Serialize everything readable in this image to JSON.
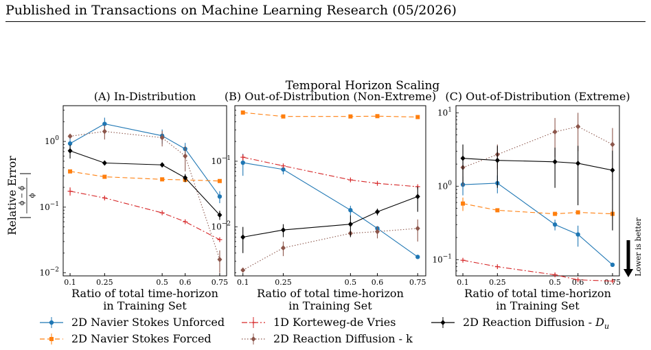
{
  "page": {
    "header": "Published in Transactions on Machine Learning Research (05/2026)"
  },
  "figure": {
    "suptitle": "Temporal Horizon Scaling",
    "ylabel_text": "Relative Error",
    "ylabel_formula_num": "ϕ − ϕ̂",
    "ylabel_formula_den": "ϕ",
    "arrow_label": "Lower is better"
  },
  "series_styles": [
    {
      "name": "2D Navier Stokes Unforced",
      "color": "#1f77b4",
      "dash": "",
      "marker": "circle"
    },
    {
      "name": "2D Navier Stokes Forced",
      "color": "#ff7f0e",
      "dash": "7,4",
      "marker": "square"
    },
    {
      "name": "1D Korteweg-de Vries",
      "color": "#d62728",
      "dash": "8,3,2,3",
      "marker": "plus"
    },
    {
      "name": "2D Reaction Diffusion - k",
      "color": "#8c564b",
      "dash": "1.5,2.5",
      "marker": "diamond"
    },
    {
      "name": "2D Reaction Diffusion - D_u",
      "color": "#000000",
      "dash": "",
      "marker": "diamond"
    }
  ],
  "legend": {
    "items": [
      {
        "label": "2D Navier Stokes Unforced"
      },
      {
        "label": "2D Navier Stokes Forced"
      },
      {
        "label": "1D Korteweg-de Vries"
      },
      {
        "label": "2D Reaction Diffusion - k"
      },
      {
        "label_main": "2D Reaction Diffusion - ",
        "label_sym": "D",
        "label_sub": "u"
      }
    ]
  },
  "chart_data": [
    {
      "type": "line",
      "title": "(A) In-Distribution",
      "xlabel": "Ratio of total time-horizon\nin Training Set",
      "ylabel": "Relative Error",
      "yscale": "log",
      "ylim": [
        0.009,
        3.5
      ],
      "xlim": [
        0.07,
        0.78
      ],
      "x": [
        0.1,
        0.25,
        0.5,
        0.6,
        0.75
      ],
      "xtick_labels": [
        "0.1",
        "0.25",
        "0.5",
        "0.6",
        "0.75"
      ],
      "yticks": [
        {
          "value": 0.01,
          "base": "10",
          "exp": "−2"
        },
        {
          "value": 0.1,
          "base": "10",
          "exp": "−1"
        },
        {
          "value": 1,
          "base": "10",
          "exp": "0"
        }
      ],
      "series": [
        {
          "values": [
            0.93,
            1.85,
            1.22,
            0.77,
            0.145
          ],
          "errors": [
            0.2,
            0.45,
            0.3,
            0.18,
            0.03
          ]
        },
        {
          "values": [
            0.35,
            0.29,
            0.265,
            0.26,
            0.25
          ],
          "errors": [
            0.0,
            0.0,
            0.0,
            0.0,
            0.0
          ]
        },
        {
          "values": [
            0.175,
            0.138,
            0.082,
            0.06,
            0.032
          ],
          "errors": [
            0.025,
            0.0,
            0.0,
            0.0,
            0.0
          ]
        },
        {
          "values": [
            1.2,
            1.42,
            1.14,
            0.6,
            0.016
          ],
          "errors": [
            0.0,
            0.35,
            0.3,
            0.25,
            0.006
          ]
        },
        {
          "values": [
            0.72,
            0.47,
            0.44,
            0.28,
            0.076
          ],
          "errors": [
            0.17,
            0.0,
            0.0,
            0.04,
            0.012
          ]
        }
      ]
    },
    {
      "type": "line",
      "title": "(B) Out-of-Distribution (Non-Extreme)",
      "xlabel": "Ratio of total time-horizon\nin Training Set",
      "ylabel": "",
      "yscale": "log",
      "ylim": [
        0.0018,
        0.7
      ],
      "xlim": [
        0.07,
        0.78
      ],
      "x": [
        0.1,
        0.25,
        0.5,
        0.6,
        0.75
      ],
      "xtick_labels": [
        "0.1",
        "0.25",
        "0.5",
        "0.6",
        "0.75"
      ],
      "yticks": [
        {
          "value": 0.01,
          "base": "10",
          "exp": "−2"
        },
        {
          "value": 0.1,
          "base": "10",
          "exp": "−1"
        }
      ],
      "series": [
        {
          "values": [
            0.095,
            0.075,
            0.018,
            0.0095,
            0.0035
          ],
          "errors": [
            0.035,
            0.012,
            0.003,
            0.0,
            0.0
          ]
        },
        {
          "values": [
            0.55,
            0.48,
            0.48,
            0.485,
            0.47
          ],
          "errors": [
            0.0,
            0.0,
            0.0,
            0.0,
            0.0
          ]
        },
        {
          "values": [
            0.115,
            0.085,
            0.052,
            0.046,
            0.041
          ],
          "errors": [
            0.012,
            0.0,
            0.0,
            0.0,
            0.0
          ]
        },
        {
          "values": [
            0.0022,
            0.0048,
            0.008,
            0.0085,
            0.0095
          ],
          "errors": [
            0.0,
            0.0012,
            0.0,
            0.0018,
            0.0035
          ]
        },
        {
          "values": [
            0.007,
            0.009,
            0.011,
            0.017,
            0.029
          ],
          "errors": [
            0.003,
            0.002,
            0.004,
            0.002,
            0.012
          ]
        }
      ]
    },
    {
      "type": "line",
      "title": "(C) Out-of-Distribution (Extreme)",
      "xlabel": "Ratio of total time-horizon\nin Training Set",
      "ylabel": "",
      "yscale": "log",
      "ylim": [
        0.06,
        12.5
      ],
      "xlim": [
        0.07,
        0.78
      ],
      "x": [
        0.1,
        0.25,
        0.5,
        0.6,
        0.75
      ],
      "xtick_labels": [
        "0.1",
        "0.25",
        "0.5",
        "0.6",
        "0.75"
      ],
      "yticks": [
        {
          "value": 0.1,
          "base": "10",
          "exp": "−1"
        },
        {
          "value": 1,
          "base": "10",
          "exp": "0"
        },
        {
          "value": 10,
          "base": "10",
          "exp": "1"
        }
      ],
      "series": [
        {
          "values": [
            1.05,
            1.1,
            0.3,
            0.22,
            0.085
          ],
          "errors": [
            0.3,
            0.3,
            0.05,
            0.07,
            0.0
          ]
        },
        {
          "values": [
            0.58,
            0.47,
            0.42,
            0.44,
            0.42
          ],
          "errors": [
            0.12,
            0.0,
            0.0,
            0.0,
            0.07
          ]
        },
        {
          "values": [
            0.098,
            0.08,
            0.062,
            0.053,
            0.051
          ],
          "errors": [
            0.0,
            0.0,
            0.0,
            0.0,
            0.0
          ]
        },
        {
          "values": [
            1.8,
            2.7,
            5.5,
            6.5,
            3.7
          ],
          "errors": [
            0.8,
            1.0,
            3.0,
            3.5,
            2.5
          ]
        },
        {
          "values": [
            2.4,
            2.25,
            2.15,
            2.05,
            1.65
          ],
          "errors": [
            1.3,
            1.3,
            1.2,
            1.5,
            1.4
          ]
        }
      ]
    }
  ]
}
